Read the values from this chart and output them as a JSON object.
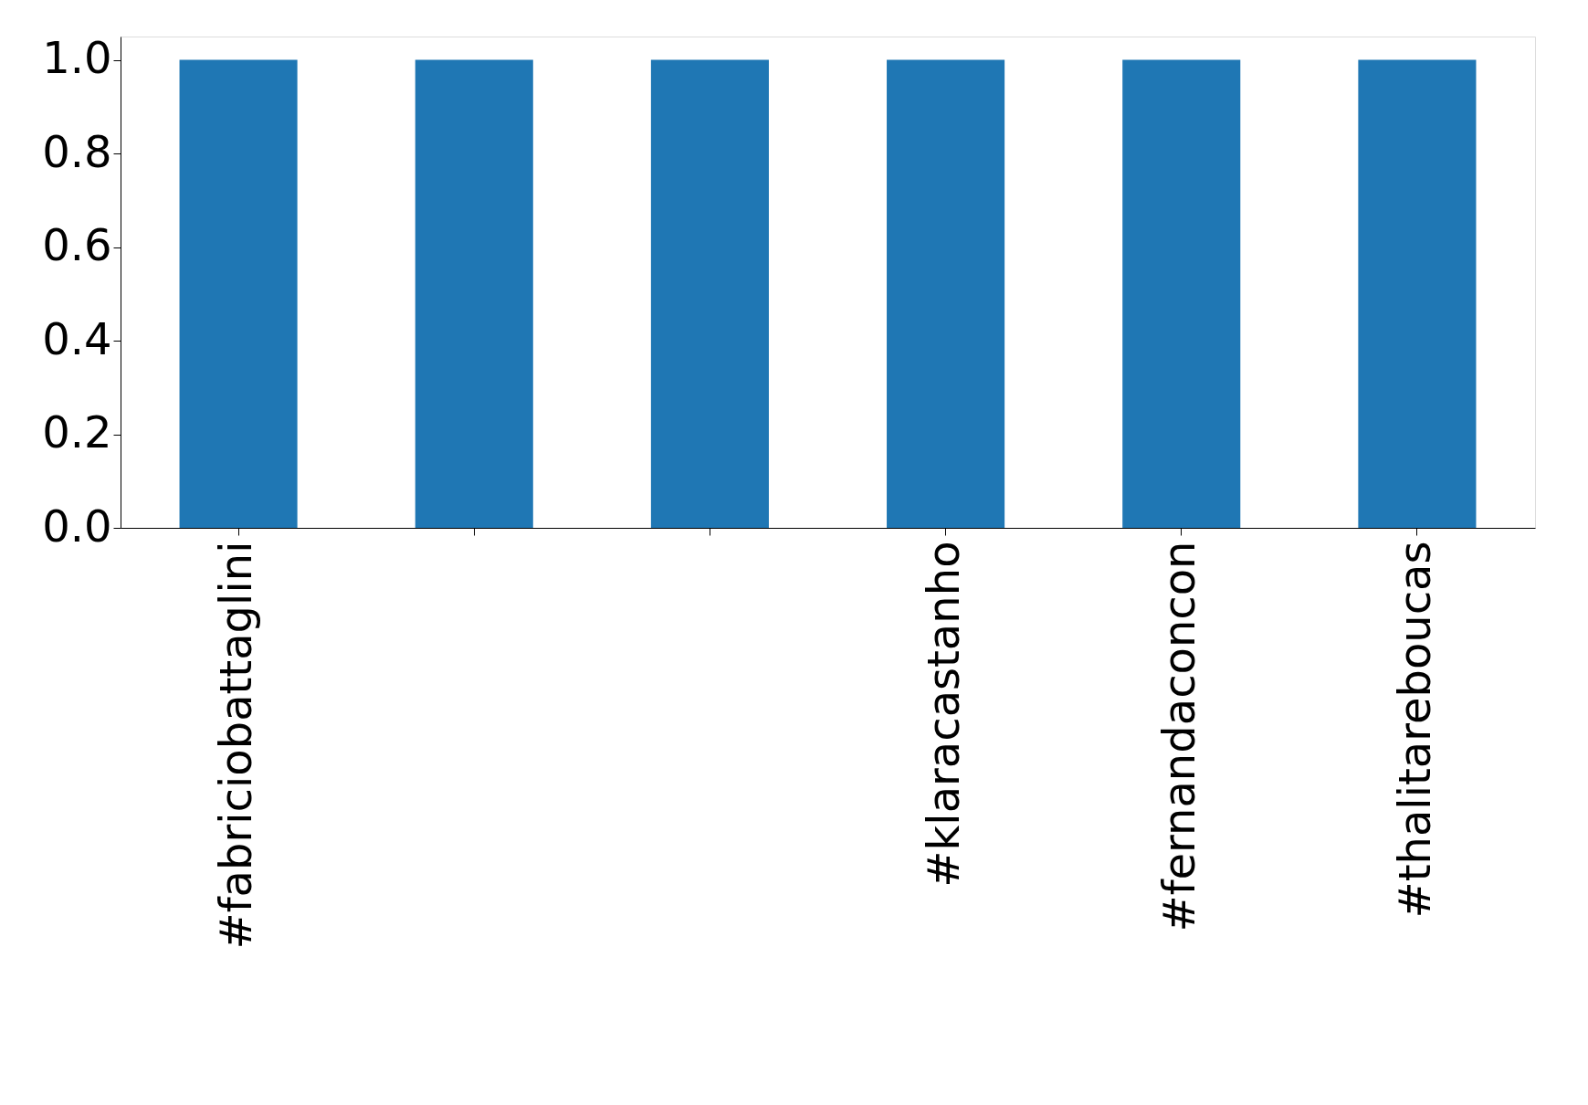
{
  "chart_data": {
    "type": "bar",
    "categories": [
      "#fabriciobattaglini",
      null,
      null,
      "#klaracastanho",
      "#fernandaconcon",
      "#thalitareboucas"
    ],
    "values": [
      1.0,
      1.0,
      1.0,
      1.0,
      1.0,
      1.0
    ],
    "color": "#1f77b4",
    "ylim": [
      0,
      1.05
    ],
    "yticks": [
      {
        "value": 0,
        "label": "0.0"
      },
      0.2,
      0.4,
      0.6,
      0.8,
      {
        "value": 1,
        "label": "1.0"
      }
    ],
    "grid": false
  }
}
